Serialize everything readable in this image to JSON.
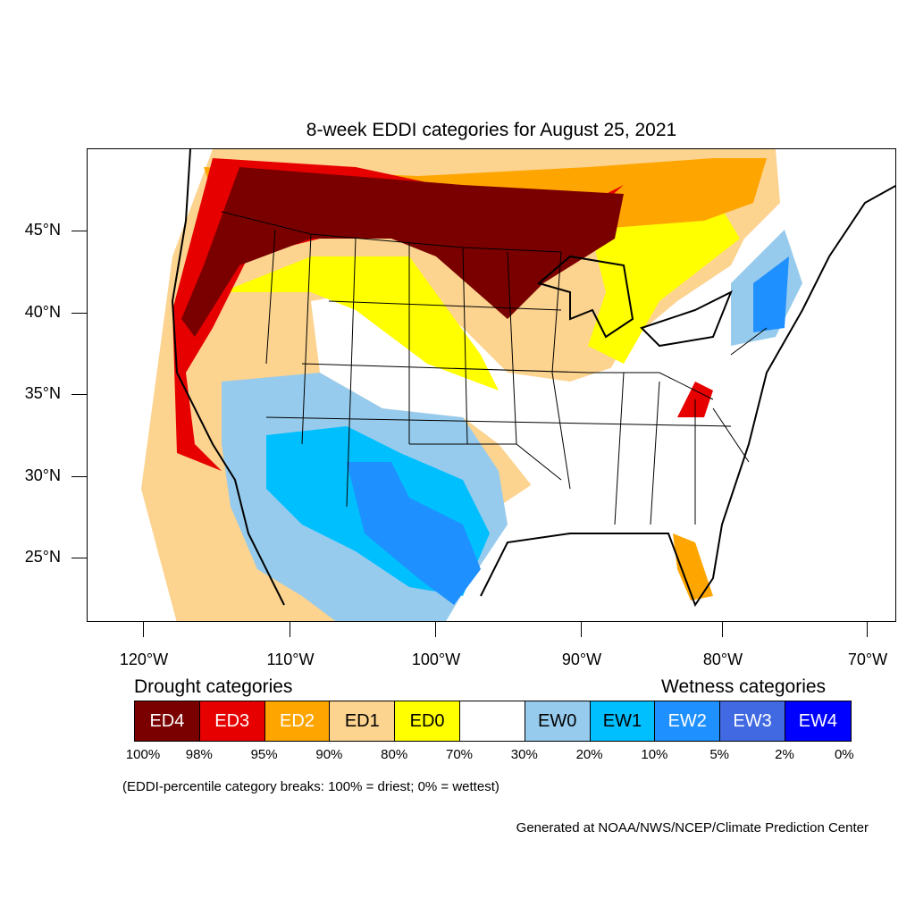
{
  "title": "8-week EDDI categories for August 25, 2021",
  "axes": {
    "lat_labels": [
      "45°N",
      "40°N",
      "35°N",
      "30°N",
      "25°N"
    ],
    "lon_labels": [
      "120°W",
      "110°W",
      "100°W",
      "90°W",
      "80°W",
      "70°W"
    ]
  },
  "legend": {
    "drought_heading": "Drought categories",
    "wetness_heading": "Wetness categories",
    "categories": [
      {
        "label": "ED4",
        "color": "#7a0000",
        "text_color": "#ffffff"
      },
      {
        "label": "ED3",
        "color": "#e60000",
        "text_color": "#ffffff"
      },
      {
        "label": "ED2",
        "color": "#ffa500",
        "text_color": "#ffffff"
      },
      {
        "label": "ED1",
        "color": "#fcd38f",
        "text_color": "#000000"
      },
      {
        "label": "ED0",
        "color": "#ffff00",
        "text_color": "#000000"
      },
      {
        "label": "",
        "color": "#ffffff",
        "text_color": "#000000"
      },
      {
        "label": "EW0",
        "color": "#97cbed",
        "text_color": "#000000"
      },
      {
        "label": "EW1",
        "color": "#00bfff",
        "text_color": "#000000"
      },
      {
        "label": "EW2",
        "color": "#1e90ff",
        "text_color": "#ffffff"
      },
      {
        "label": "EW3",
        "color": "#4169e1",
        "text_color": "#ffffff"
      },
      {
        "label": "EW4",
        "color": "#0000ff",
        "text_color": "#ffffff"
      }
    ],
    "percent_breaks": [
      "100%",
      "98%",
      "95%",
      "90%",
      "80%",
      "70%",
      "30%",
      "20%",
      "10%",
      "5%",
      "2%",
      "0%"
    ]
  },
  "note": "(EDDI-percentile category breaks: 100% = driest; 0% = wettest)",
  "credit": "Generated at NOAA/NWS/NCEP/Climate Prediction Center"
}
